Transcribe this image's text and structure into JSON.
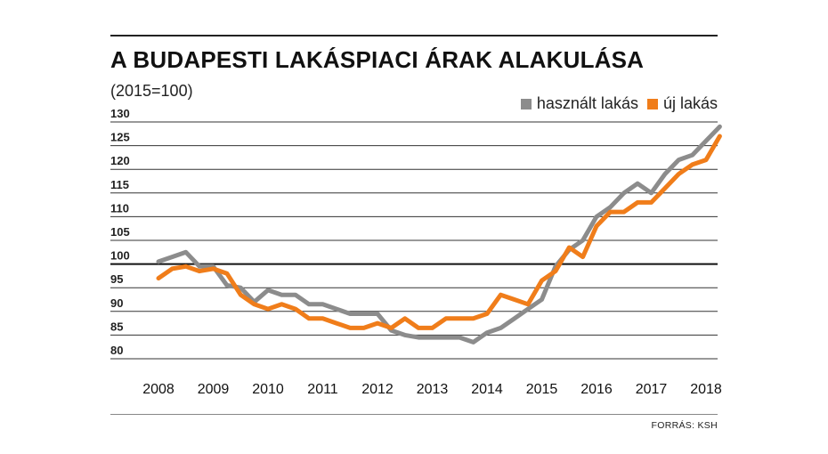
{
  "chart_data": {
    "type": "line",
    "title": "A BUDAPESTI LAKÁSPIACI ÁRAK ALAKULÁSA",
    "subtitle": "(2015=100)",
    "source": "FORRÁS: KSH",
    "xlabel": "",
    "ylabel": "",
    "ylim": [
      80,
      130
    ],
    "y_ticks": [
      "130",
      "125",
      "120",
      "115",
      "110",
      "105",
      "100",
      "95",
      "90",
      "85",
      "80"
    ],
    "x_ticks": [
      "2008",
      "2009",
      "2010",
      "2011",
      "2012",
      "2013",
      "2014",
      "2015",
      "2016",
      "2017",
      "2018"
    ],
    "reference_line": 100,
    "legend_position": "top-right",
    "grid": true,
    "x": [
      "2008 Q1",
      "2008 Q2",
      "2008 Q3",
      "2008 Q4",
      "2009 Q1",
      "2009 Q2",
      "2009 Q3",
      "2009 Q4",
      "2010 Q1",
      "2010 Q2",
      "2010 Q3",
      "2010 Q4",
      "2011 Q1",
      "2011 Q2",
      "2011 Q3",
      "2011 Q4",
      "2012 Q1",
      "2012 Q2",
      "2012 Q3",
      "2012 Q4",
      "2013 Q1",
      "2013 Q2",
      "2013 Q3",
      "2013 Q4",
      "2014 Q1",
      "2014 Q2",
      "2014 Q3",
      "2014 Q4",
      "2015 Q1",
      "2015 Q2",
      "2015 Q3",
      "2015 Q4",
      "2016 Q1",
      "2016 Q2",
      "2016 Q3",
      "2016 Q4",
      "2017 Q1",
      "2017 Q2",
      "2017 Q3",
      "2017 Q4",
      "2018 Q1",
      "2018 Q2"
    ],
    "series": [
      {
        "name": "használt lakás",
        "color": "#8c8c8c",
        "values": [
          100.5,
          101.5,
          102.5,
          99.5,
          99.5,
          95.5,
          95,
          92,
          94.5,
          93.5,
          93.5,
          91.5,
          91.5,
          90.5,
          89.5,
          89.5,
          89.5,
          86,
          85,
          84.5,
          84.5,
          84.5,
          84.5,
          83.5,
          85.5,
          86.5,
          88.5,
          90.5,
          92.5,
          99.5,
          103,
          105,
          110,
          112,
          115,
          117,
          115,
          119,
          122,
          123,
          126,
          129
        ]
      },
      {
        "name": "új lakás",
        "color": "#f07d1a",
        "values": [
          97,
          99,
          99.5,
          98.5,
          99,
          98,
          93.5,
          91.5,
          90.5,
          91.5,
          90.5,
          88.5,
          88.5,
          87.5,
          86.5,
          86.5,
          87.5,
          86.5,
          88.5,
          86.5,
          86.5,
          88.5,
          88.5,
          88.5,
          89.5,
          93.5,
          92.5,
          91.5,
          96.5,
          98.5,
          103.5,
          101.5,
          108,
          111,
          111,
          113,
          113,
          116,
          119,
          121,
          122,
          127
        ]
      }
    ]
  }
}
